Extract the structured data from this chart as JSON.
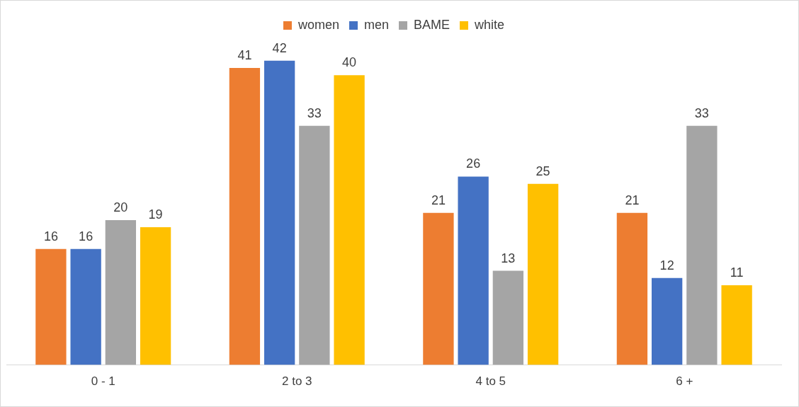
{
  "chart_data": {
    "type": "bar",
    "categories": [
      "0 - 1",
      "2 to 3",
      "4 to 5",
      "6 +"
    ],
    "series": [
      {
        "name": "women",
        "color": "#ed7d31",
        "values": [
          16,
          41,
          21,
          21
        ]
      },
      {
        "name": "men",
        "color": "#4472c4",
        "values": [
          16,
          42,
          26,
          12
        ]
      },
      {
        "name": "BAME",
        "color": "#a5a5a5",
        "values": [
          20,
          33,
          13,
          33
        ]
      },
      {
        "name": "white",
        "color": "#ffc000",
        "values": [
          19,
          40,
          25,
          11
        ]
      }
    ],
    "data_labels": true,
    "legend": "top",
    "grid": false
  }
}
